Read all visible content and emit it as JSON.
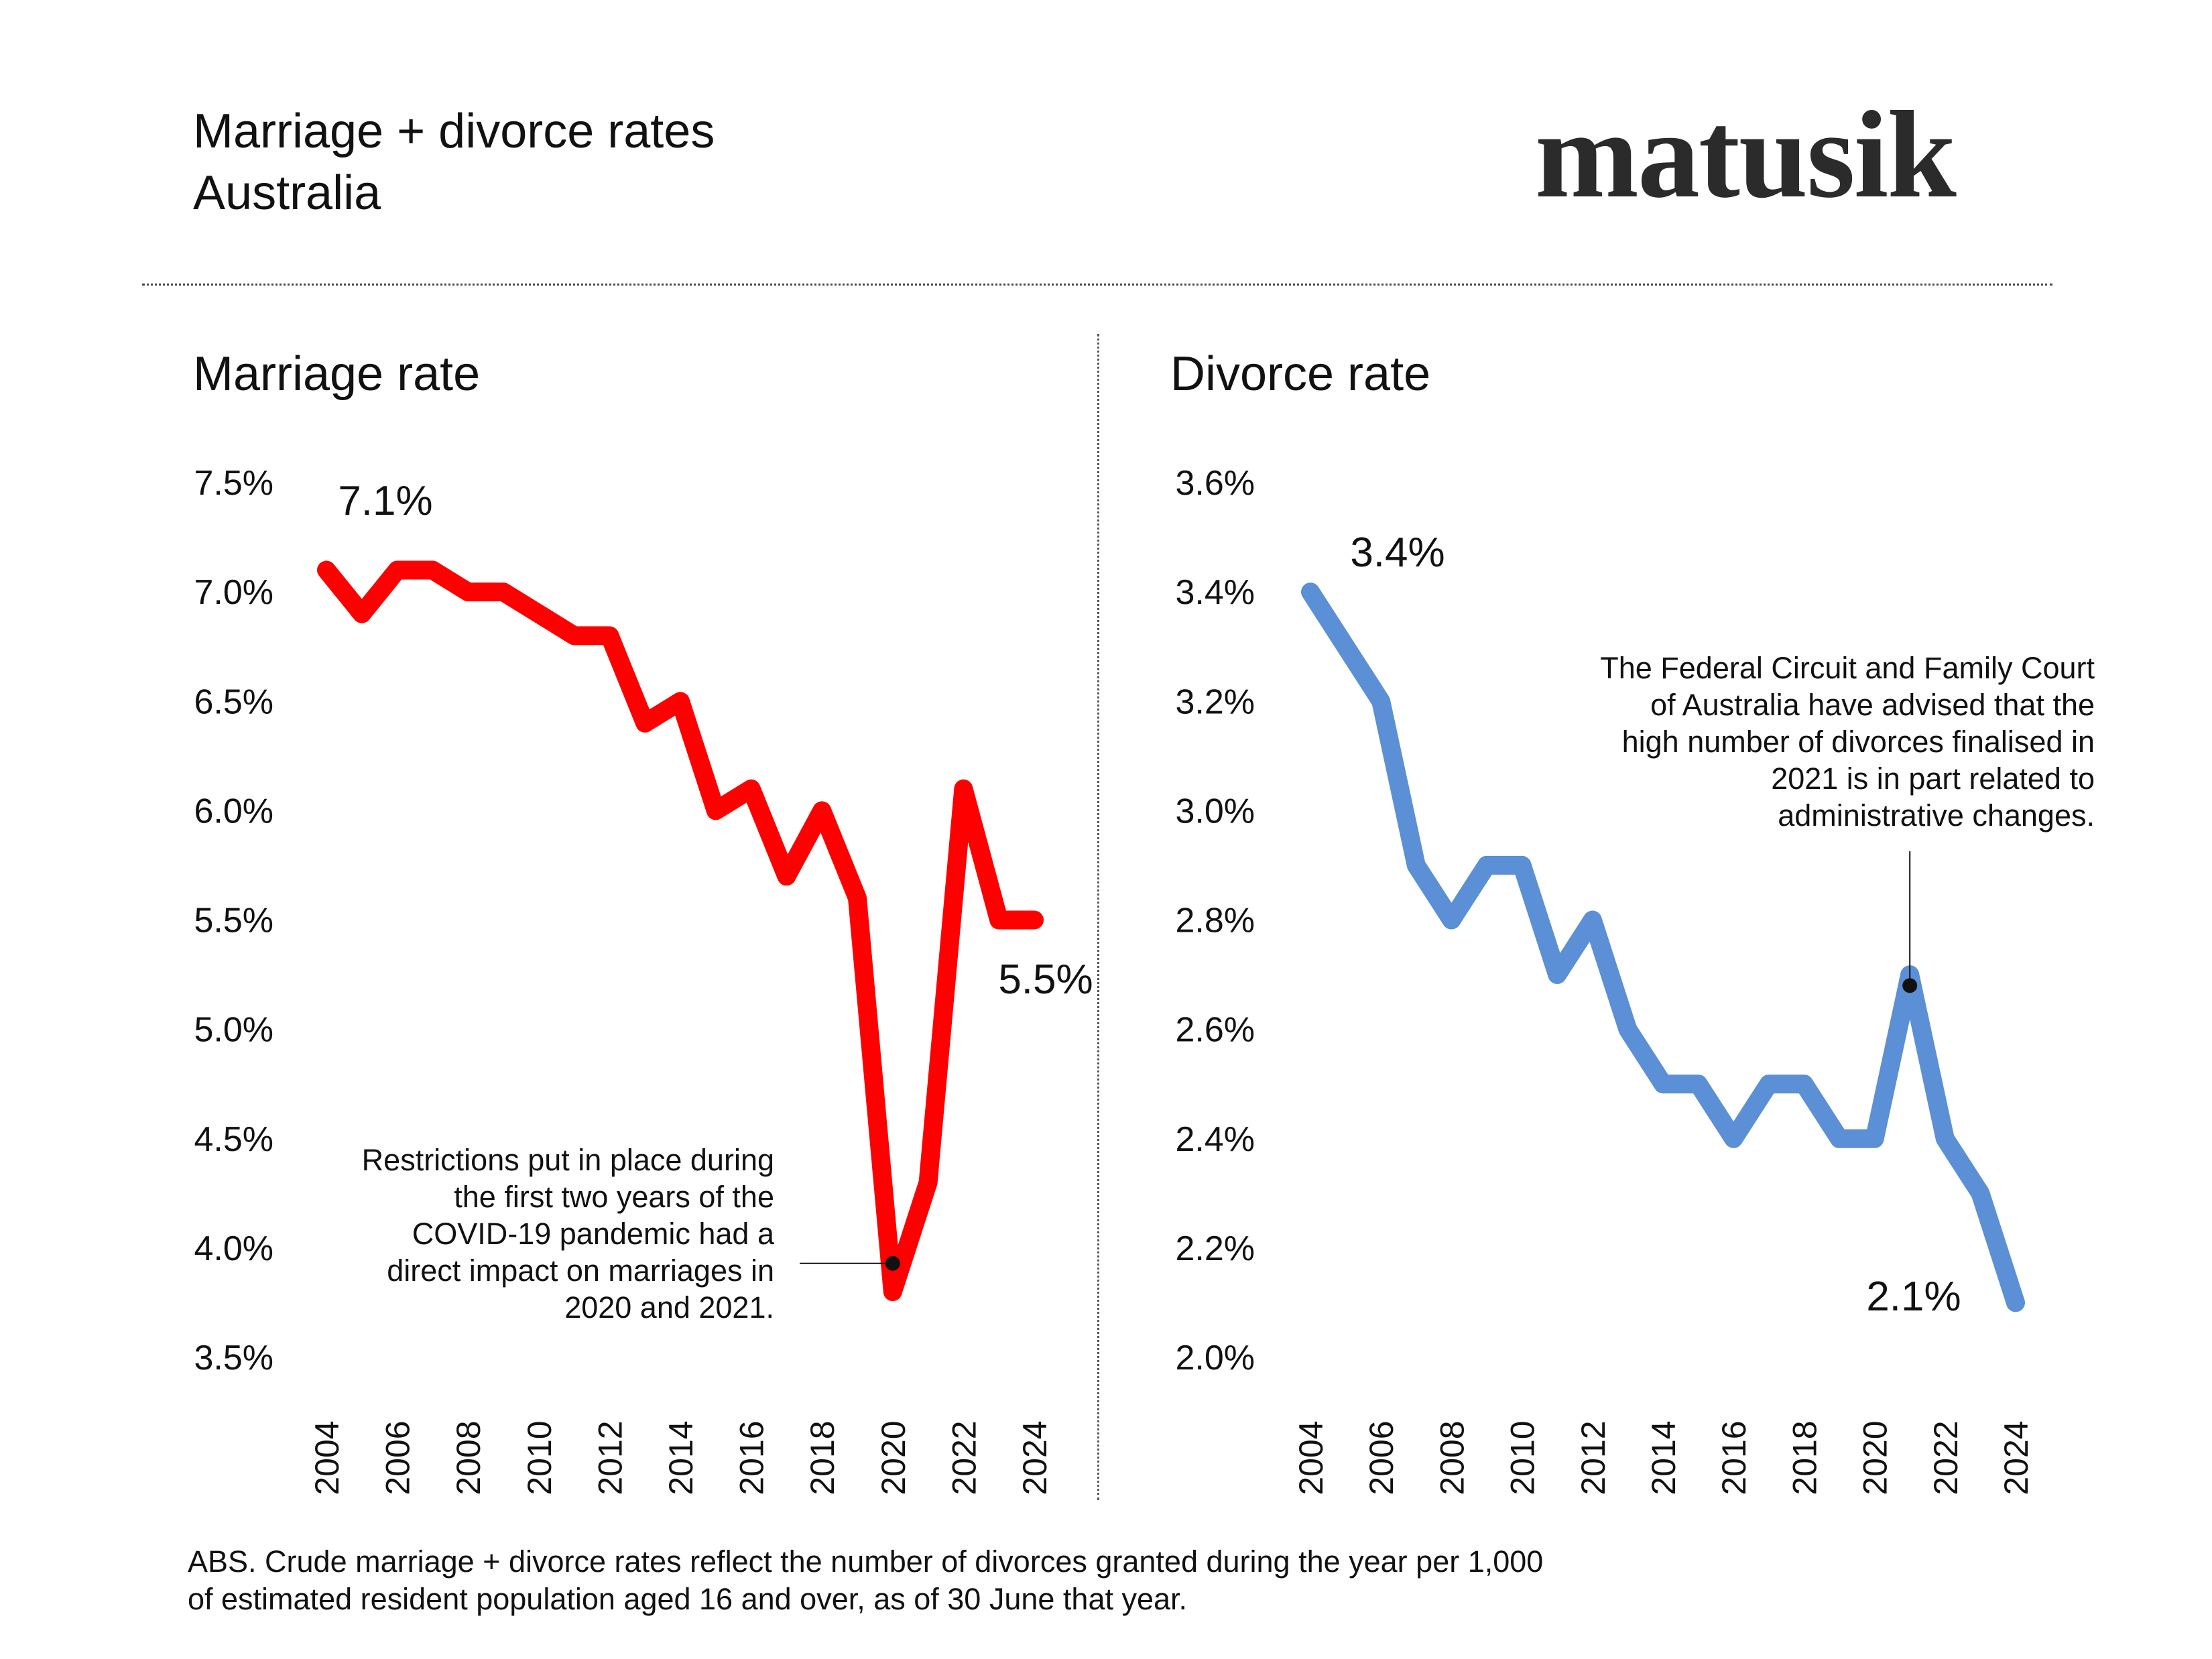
{
  "header": {
    "title": "Marriage + divorce rates",
    "subtitle": "Australia",
    "logo_text": "matusik"
  },
  "source": {
    "line1": "ABS.  Crude marriage + divorce rates reflect the number of divorces granted during the year per 1,000",
    "line2": "of estimated resident population aged 16 and over, as of 30 June that year."
  },
  "chart_data": [
    {
      "type": "line",
      "title": "Marriage rate",
      "color": "#ff0000",
      "x": [
        2004,
        2005,
        2006,
        2007,
        2008,
        2009,
        2010,
        2011,
        2012,
        2013,
        2014,
        2015,
        2016,
        2017,
        2018,
        2019,
        2020,
        2021,
        2022,
        2023,
        2024
      ],
      "values": [
        7.1,
        6.9,
        7.1,
        7.1,
        7.0,
        7.0,
        6.9,
        6.8,
        6.8,
        6.4,
        6.5,
        6.0,
        6.1,
        5.7,
        6.0,
        5.6,
        3.8,
        4.3,
        6.1,
        5.5,
        5.5
      ],
      "ylim": [
        3.5,
        7.5
      ],
      "yticks": [
        "7.5%",
        "7.0%",
        "6.5%",
        "6.0%",
        "5.5%",
        "5.0%",
        "4.5%",
        "4.0%",
        "3.5%"
      ],
      "ytick_values": [
        7.5,
        7.0,
        6.5,
        6.0,
        5.5,
        5.0,
        4.5,
        4.0,
        3.5
      ],
      "xticks": [
        "2004",
        "2006",
        "2008",
        "2010",
        "2012",
        "2014",
        "2016",
        "2018",
        "2020",
        "2022",
        "2024"
      ],
      "xtick_values": [
        2004,
        2006,
        2008,
        2010,
        2012,
        2014,
        2016,
        2018,
        2020,
        2022,
        2024
      ],
      "grid": false,
      "start_label": "7.1%",
      "end_label": "5.5%",
      "annotation": {
        "lines": [
          "Restrictions put in place during",
          "the first two years of the",
          "COVID-19 pandemic had a",
          "direct impact on marriages in",
          "2020 and 2021."
        ],
        "point_x": 2020,
        "point_y": 3.93
      }
    },
    {
      "type": "line",
      "title": "Divorce rate",
      "color": "#5b8fd6",
      "x": [
        2004,
        2005,
        2006,
        2007,
        2008,
        2009,
        2010,
        2011,
        2012,
        2013,
        2014,
        2015,
        2016,
        2017,
        2018,
        2019,
        2020,
        2021,
        2022,
        2023,
        2024
      ],
      "values": [
        3.4,
        3.3,
        3.2,
        2.9,
        2.8,
        2.9,
        2.9,
        2.7,
        2.8,
        2.6,
        2.5,
        2.5,
        2.4,
        2.5,
        2.5,
        2.4,
        2.4,
        2.7,
        2.4,
        2.3,
        2.1
      ],
      "ylim": [
        2.0,
        3.6
      ],
      "yticks": [
        "3.6%",
        "3.4%",
        "3.2%",
        "3.0%",
        "2.8%",
        "2.6%",
        "2.4%",
        "2.2%",
        "2.0%"
      ],
      "ytick_values": [
        3.6,
        3.4,
        3.2,
        3.0,
        2.8,
        2.6,
        2.4,
        2.2,
        2.0
      ],
      "xticks": [
        "2004",
        "2006",
        "2008",
        "2010",
        "2012",
        "2014",
        "2016",
        "2018",
        "2020",
        "2022",
        "2024"
      ],
      "xtick_values": [
        2004,
        2006,
        2008,
        2010,
        2012,
        2014,
        2016,
        2018,
        2020,
        2022,
        2024
      ],
      "grid": false,
      "start_label": "3.4%",
      "end_label": "2.1%",
      "annotation": {
        "lines": [
          "The Federal Circuit and Family Court",
          "of Australia have advised that the",
          "high number of divorces finalised in",
          "2021 is in part related to",
          "administrative changes."
        ],
        "point_x": 2021,
        "point_y": 2.68
      }
    }
  ]
}
